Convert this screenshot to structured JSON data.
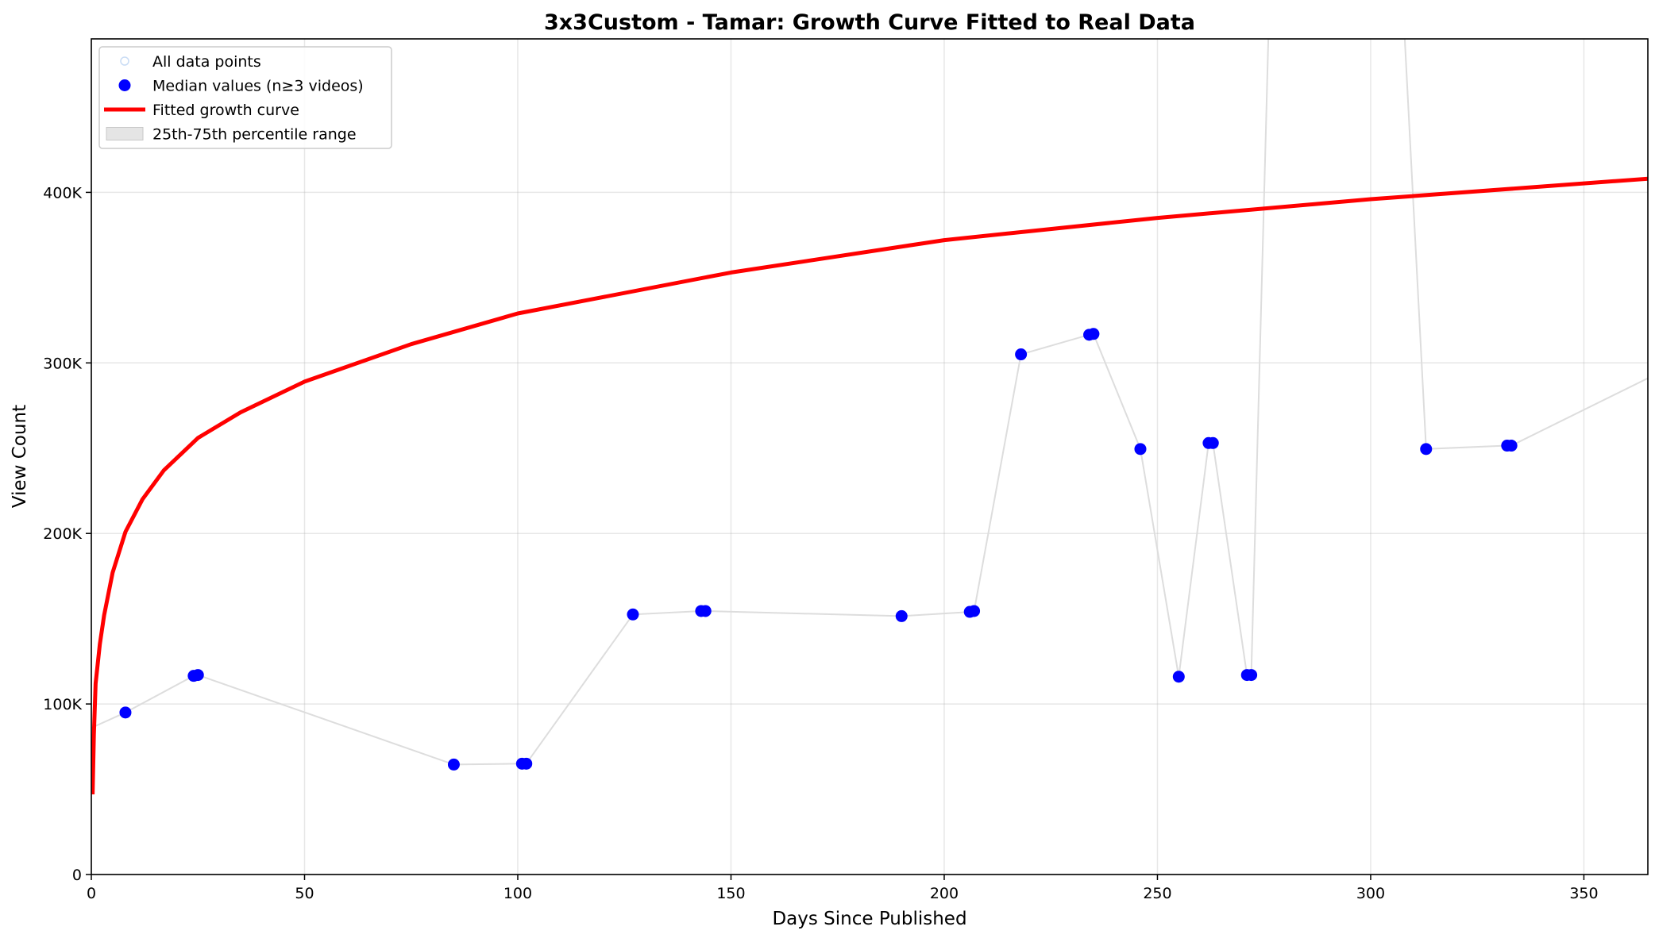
{
  "chart_data": {
    "type": "line",
    "title": "3x3Custom - Tamar: Growth Curve Fitted to Real Data",
    "xlabel": "Days Since Published",
    "ylabel": "View Count",
    "xlim": [
      0,
      365
    ],
    "ylim": [
      0,
      490000
    ],
    "grid": true,
    "legend_position": "top-left",
    "x_ticks": [
      0,
      50,
      100,
      150,
      200,
      250,
      300,
      350
    ],
    "x_tick_labels": [
      "0",
      "50",
      "100",
      "150",
      "200",
      "250",
      "300",
      "350"
    ],
    "y_ticks": [
      0,
      100000,
      200000,
      300000,
      400000
    ],
    "y_tick_labels": [
      "0",
      "100K",
      "200K",
      "300K",
      "400K"
    ],
    "legend": [
      {
        "label": "All data points",
        "kind": "point-faint"
      },
      {
        "label": "Median values (n≥3 videos)",
        "kind": "point"
      },
      {
        "label": "Fitted growth curve",
        "kind": "line"
      },
      {
        "label": "25th-75th percentile range",
        "kind": "band"
      }
    ],
    "colors": {
      "median": "#0000ff",
      "fit": "#ff0000",
      "range": "#dddddd",
      "faint": "#c9dcf5"
    },
    "series": [
      {
        "name": "Median values (n≥3 videos)",
        "x": [
          8,
          24,
          25,
          85,
          101,
          102,
          127,
          143,
          144,
          190,
          206,
          207,
          218,
          234,
          235,
          246,
          255,
          262,
          263,
          271,
          272,
          313,
          332,
          333
        ],
        "y": [
          95000,
          116500,
          117000,
          64500,
          65000,
          65000,
          152500,
          154500,
          154500,
          151500,
          154000,
          154500,
          305000,
          316500,
          317000,
          249500,
          116000,
          253000,
          253000,
          117000,
          117000,
          249500,
          251500,
          251500
        ]
      },
      {
        "name": "25th-75th percentile range",
        "x": [
          0,
          8,
          24,
          25,
          85,
          101,
          102,
          127,
          143,
          144,
          190,
          206,
          207,
          218,
          234,
          235,
          246,
          255,
          262,
          263,
          271,
          272,
          276,
          308,
          313,
          332,
          333,
          365
        ],
        "y": [
          86000,
          95000,
          116500,
          117000,
          64500,
          65000,
          65000,
          152500,
          154500,
          154500,
          151500,
          154000,
          154500,
          305000,
          316500,
          317000,
          249500,
          116000,
          253000,
          253000,
          117000,
          117000,
          490000,
          490000,
          249500,
          251500,
          251500,
          291000
        ]
      },
      {
        "name": "Fitted growth curve",
        "x": [
          0.3,
          0.6,
          1,
          2,
          3,
          5,
          8,
          12,
          17,
          25,
          35,
          50,
          75,
          100,
          150,
          200,
          250,
          300,
          365
        ],
        "y": [
          47000,
          82000,
          112000,
          135000,
          152000,
          177000,
          201000,
          220000,
          237000,
          256000,
          271000,
          289000,
          311000,
          329000,
          353000,
          372000,
          385000,
          396000,
          408000
        ]
      }
    ]
  }
}
